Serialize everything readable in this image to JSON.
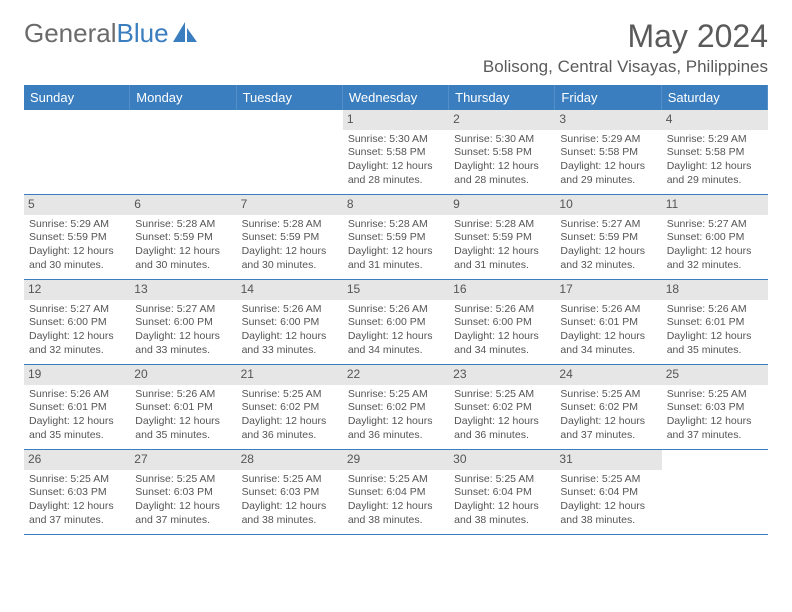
{
  "logo": {
    "general": "General",
    "blue": "Blue"
  },
  "header": {
    "month_title": "May 2024",
    "location": "Bolisong, Central Visayas, Philippines"
  },
  "colors": {
    "header_bg": "#3a7ebf",
    "header_text": "#ffffff",
    "daynum_bg": "#e6e6e6",
    "text": "#555555",
    "page_bg": "#ffffff"
  },
  "calendar": {
    "weekdays": [
      "Sunday",
      "Monday",
      "Tuesday",
      "Wednesday",
      "Thursday",
      "Friday",
      "Saturday"
    ],
    "leading_blanks": 3,
    "days": [
      {
        "n": 1,
        "sunrise": "5:30 AM",
        "sunset": "5:58 PM",
        "daylight": "12 hours and 28 minutes."
      },
      {
        "n": 2,
        "sunrise": "5:30 AM",
        "sunset": "5:58 PM",
        "daylight": "12 hours and 28 minutes."
      },
      {
        "n": 3,
        "sunrise": "5:29 AM",
        "sunset": "5:58 PM",
        "daylight": "12 hours and 29 minutes."
      },
      {
        "n": 4,
        "sunrise": "5:29 AM",
        "sunset": "5:58 PM",
        "daylight": "12 hours and 29 minutes."
      },
      {
        "n": 5,
        "sunrise": "5:29 AM",
        "sunset": "5:59 PM",
        "daylight": "12 hours and 30 minutes."
      },
      {
        "n": 6,
        "sunrise": "5:28 AM",
        "sunset": "5:59 PM",
        "daylight": "12 hours and 30 minutes."
      },
      {
        "n": 7,
        "sunrise": "5:28 AM",
        "sunset": "5:59 PM",
        "daylight": "12 hours and 30 minutes."
      },
      {
        "n": 8,
        "sunrise": "5:28 AM",
        "sunset": "5:59 PM",
        "daylight": "12 hours and 31 minutes."
      },
      {
        "n": 9,
        "sunrise": "5:28 AM",
        "sunset": "5:59 PM",
        "daylight": "12 hours and 31 minutes."
      },
      {
        "n": 10,
        "sunrise": "5:27 AM",
        "sunset": "5:59 PM",
        "daylight": "12 hours and 32 minutes."
      },
      {
        "n": 11,
        "sunrise": "5:27 AM",
        "sunset": "6:00 PM",
        "daylight": "12 hours and 32 minutes."
      },
      {
        "n": 12,
        "sunrise": "5:27 AM",
        "sunset": "6:00 PM",
        "daylight": "12 hours and 32 minutes."
      },
      {
        "n": 13,
        "sunrise": "5:27 AM",
        "sunset": "6:00 PM",
        "daylight": "12 hours and 33 minutes."
      },
      {
        "n": 14,
        "sunrise": "5:26 AM",
        "sunset": "6:00 PM",
        "daylight": "12 hours and 33 minutes."
      },
      {
        "n": 15,
        "sunrise": "5:26 AM",
        "sunset": "6:00 PM",
        "daylight": "12 hours and 34 minutes."
      },
      {
        "n": 16,
        "sunrise": "5:26 AM",
        "sunset": "6:00 PM",
        "daylight": "12 hours and 34 minutes."
      },
      {
        "n": 17,
        "sunrise": "5:26 AM",
        "sunset": "6:01 PM",
        "daylight": "12 hours and 34 minutes."
      },
      {
        "n": 18,
        "sunrise": "5:26 AM",
        "sunset": "6:01 PM",
        "daylight": "12 hours and 35 minutes."
      },
      {
        "n": 19,
        "sunrise": "5:26 AM",
        "sunset": "6:01 PM",
        "daylight": "12 hours and 35 minutes."
      },
      {
        "n": 20,
        "sunrise": "5:26 AM",
        "sunset": "6:01 PM",
        "daylight": "12 hours and 35 minutes."
      },
      {
        "n": 21,
        "sunrise": "5:25 AM",
        "sunset": "6:02 PM",
        "daylight": "12 hours and 36 minutes."
      },
      {
        "n": 22,
        "sunrise": "5:25 AM",
        "sunset": "6:02 PM",
        "daylight": "12 hours and 36 minutes."
      },
      {
        "n": 23,
        "sunrise": "5:25 AM",
        "sunset": "6:02 PM",
        "daylight": "12 hours and 36 minutes."
      },
      {
        "n": 24,
        "sunrise": "5:25 AM",
        "sunset": "6:02 PM",
        "daylight": "12 hours and 37 minutes."
      },
      {
        "n": 25,
        "sunrise": "5:25 AM",
        "sunset": "6:03 PM",
        "daylight": "12 hours and 37 minutes."
      },
      {
        "n": 26,
        "sunrise": "5:25 AM",
        "sunset": "6:03 PM",
        "daylight": "12 hours and 37 minutes."
      },
      {
        "n": 27,
        "sunrise": "5:25 AM",
        "sunset": "6:03 PM",
        "daylight": "12 hours and 37 minutes."
      },
      {
        "n": 28,
        "sunrise": "5:25 AM",
        "sunset": "6:03 PM",
        "daylight": "12 hours and 38 minutes."
      },
      {
        "n": 29,
        "sunrise": "5:25 AM",
        "sunset": "6:04 PM",
        "daylight": "12 hours and 38 minutes."
      },
      {
        "n": 30,
        "sunrise": "5:25 AM",
        "sunset": "6:04 PM",
        "daylight": "12 hours and 38 minutes."
      },
      {
        "n": 31,
        "sunrise": "5:25 AM",
        "sunset": "6:04 PM",
        "daylight": "12 hours and 38 minutes."
      }
    ],
    "labels": {
      "sunrise_prefix": "Sunrise: ",
      "sunset_prefix": "Sunset: ",
      "daylight_prefix": "Daylight: "
    }
  }
}
